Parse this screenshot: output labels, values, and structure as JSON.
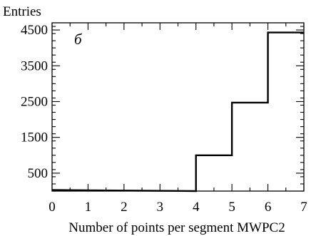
{
  "chart_data": {
    "type": "histogram-step",
    "ylabel": "Entries",
    "xlabel": "Number of points per segment MWPC2",
    "panel_label": "б",
    "xlim": [
      0,
      7
    ],
    "ylim": [
      0,
      4700
    ],
    "xticks": [
      "0",
      "1",
      "2",
      "3",
      "4",
      "5",
      "6",
      "7"
    ],
    "yticks": [
      "500",
      "1500",
      "2500",
      "3500",
      "4500"
    ],
    "bins": [
      {
        "x_low": 0,
        "x_high": 4,
        "value": 0
      },
      {
        "x_low": 4,
        "x_high": 5,
        "value": 1000
      },
      {
        "x_low": 5,
        "x_high": 6,
        "value": 2470
      },
      {
        "x_low": 6,
        "x_high": 7,
        "value": 4430
      }
    ],
    "grid": false
  }
}
